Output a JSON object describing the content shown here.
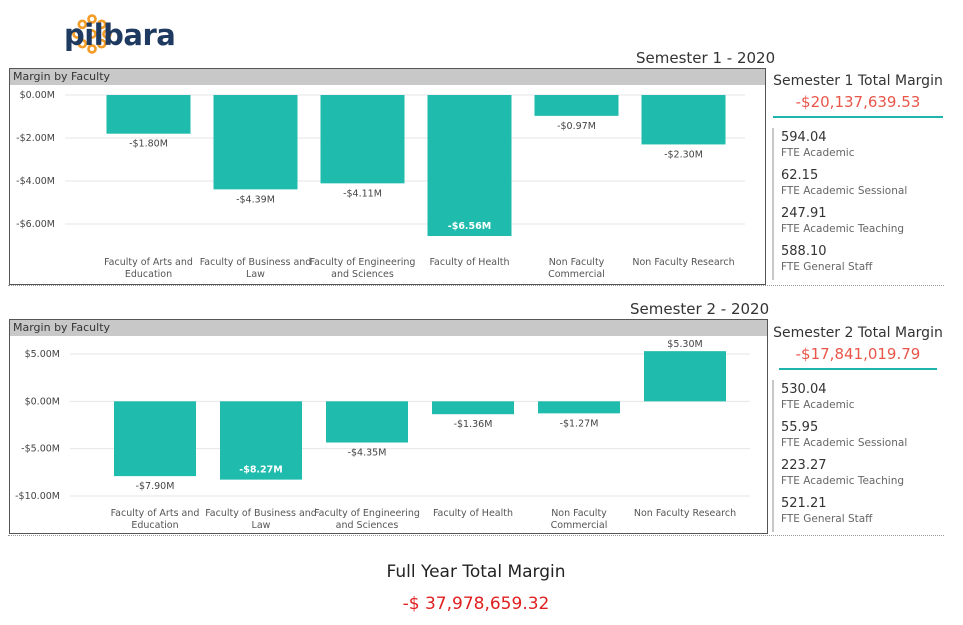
{
  "brand": {
    "name": "pilbara",
    "color": "#1f3a60",
    "icon_color": "#f39c27"
  },
  "semesters": [
    {
      "title": "Semester 1 - 2020",
      "summary_title": "Semester 1 Total Margin",
      "summary_value": "-$20,137,639.53",
      "fte": [
        {
          "value": "594.04",
          "label": "FTE Academic"
        },
        {
          "value": "62.15",
          "label": "FTE Academic Sessional"
        },
        {
          "value": "247.91",
          "label": "FTE Academic Teaching"
        },
        {
          "value": "588.10",
          "label": "FTE General Staff"
        }
      ]
    },
    {
      "title": "Semester 2 - 2020",
      "summary_title": "Semester 2 Total Margin",
      "summary_value": "-$17,841,019.79",
      "fte": [
        {
          "value": "530.04",
          "label": "FTE Academic"
        },
        {
          "value": "55.95",
          "label": "FTE Academic Sessional"
        },
        {
          "value": "223.27",
          "label": "FTE Academic Teaching"
        },
        {
          "value": "521.21",
          "label": "FTE General Staff"
        }
      ]
    }
  ],
  "chart_data": [
    {
      "type": "bar",
      "title": "Margin by Faculty",
      "categories": [
        [
          "Faculty of Arts and",
          "Education"
        ],
        [
          "Faculty of Business and",
          "Law"
        ],
        [
          "Faculty of Engineering",
          "and Sciences"
        ],
        [
          "Faculty of Health"
        ],
        [
          "Non Faculty",
          "Commercial"
        ],
        [
          "Non Faculty Research"
        ]
      ],
      "values": [
        -1.8,
        -4.39,
        -4.11,
        -6.56,
        -0.97,
        -2.3
      ],
      "data_labels": [
        "-$1.80M",
        "-$4.39M",
        "-$4.11M",
        "-$6.56M",
        "-$0.97M",
        "-$2.30M"
      ],
      "yticks": [
        0,
        -2,
        -4,
        -6
      ],
      "ytick_labels": [
        "$0.00M",
        "-$2.00M",
        "-$4.00M",
        "-$6.00M"
      ],
      "ylim": [
        -6.56,
        0
      ],
      "bar_color": "#1fbcad",
      "grid": true
    },
    {
      "type": "bar",
      "title": "Margin by Faculty",
      "categories": [
        [
          "Faculty of Arts and",
          "Education"
        ],
        [
          "Faculty of Business and",
          "Law"
        ],
        [
          "Faculty of Engineering",
          "and Sciences"
        ],
        [
          "Faculty of Health"
        ],
        [
          "Non Faculty",
          "Commercial"
        ],
        [
          "Non Faculty Research"
        ]
      ],
      "values": [
        -7.9,
        -8.27,
        -4.35,
        -1.36,
        -1.27,
        5.3
      ],
      "data_labels": [
        "-$7.90M",
        "-$8.27M",
        "-$4.35M",
        "-$1.36M",
        "-$1.27M",
        "$5.30M"
      ],
      "yticks": [
        5,
        0,
        -5,
        -10
      ],
      "ytick_labels": [
        "$5.00M",
        "$0.00M",
        "-$5.00M",
        "-$10.00M"
      ],
      "ylim": [
        -10,
        5
      ],
      "bar_color": "#1fbcad",
      "grid": true
    }
  ],
  "full_year": {
    "title": "Full Year Total Margin",
    "value": "-$ 37,978,659.32"
  }
}
